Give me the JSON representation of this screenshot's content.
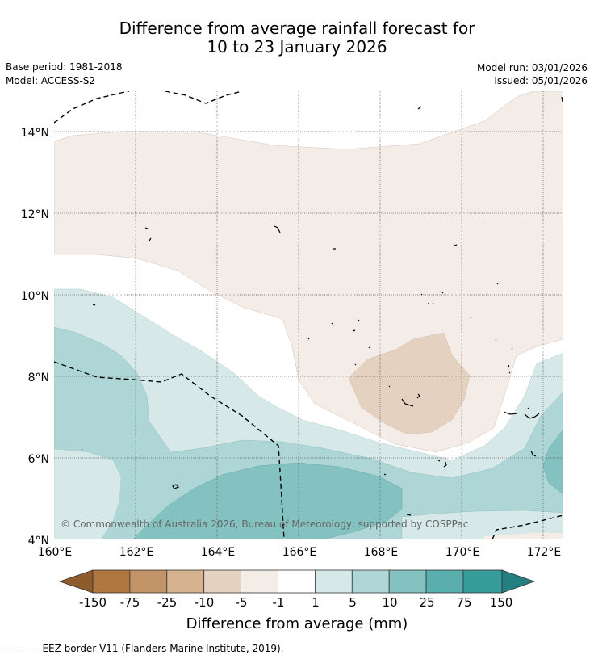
{
  "title": {
    "line1": "Difference from average rainfall forecast for",
    "line2": "10 to 23 January 2026"
  },
  "info": {
    "base_period": "Base period: 1981-2018",
    "model": "Model: ACCESS-S2",
    "model_run": "Model run: 03/01/2026",
    "issued": "Issued: 05/01/2026"
  },
  "map": {
    "lon_range": [
      160,
      172.5
    ],
    "lat_range": [
      4,
      15
    ],
    "lon_ticks": [
      "160°E",
      "162°E",
      "164°E",
      "166°E",
      "168°E",
      "170°E",
      "172°E"
    ],
    "lat_ticks": [
      "4°N",
      "6°N",
      "8°N",
      "10°N",
      "12°N",
      "14°N"
    ],
    "copyright": "© Commonwealth of Australia 2026, Bureau of Meteorology, supported by COSPPac"
  },
  "colorbar": {
    "labels": [
      "-150",
      "-75",
      "-25",
      "-10",
      "-5",
      "-1",
      "1",
      "5",
      "10",
      "25",
      "75",
      "150"
    ],
    "colors": [
      "#8f5a2c",
      "#b07840",
      "#c39468",
      "#d6b291",
      "#e4d1c0",
      "#f4ece7",
      "#ffffff",
      "#d6e9e8",
      "#aed6d6",
      "#84c2c1",
      "#5aafae",
      "#369c9a",
      "#247f80"
    ],
    "title": "Difference from average (mm)"
  },
  "footnote": {
    "dashes": "-- -- --",
    "text": "EEZ border V11 (Flanders Marine Institute, 2019)."
  }
}
